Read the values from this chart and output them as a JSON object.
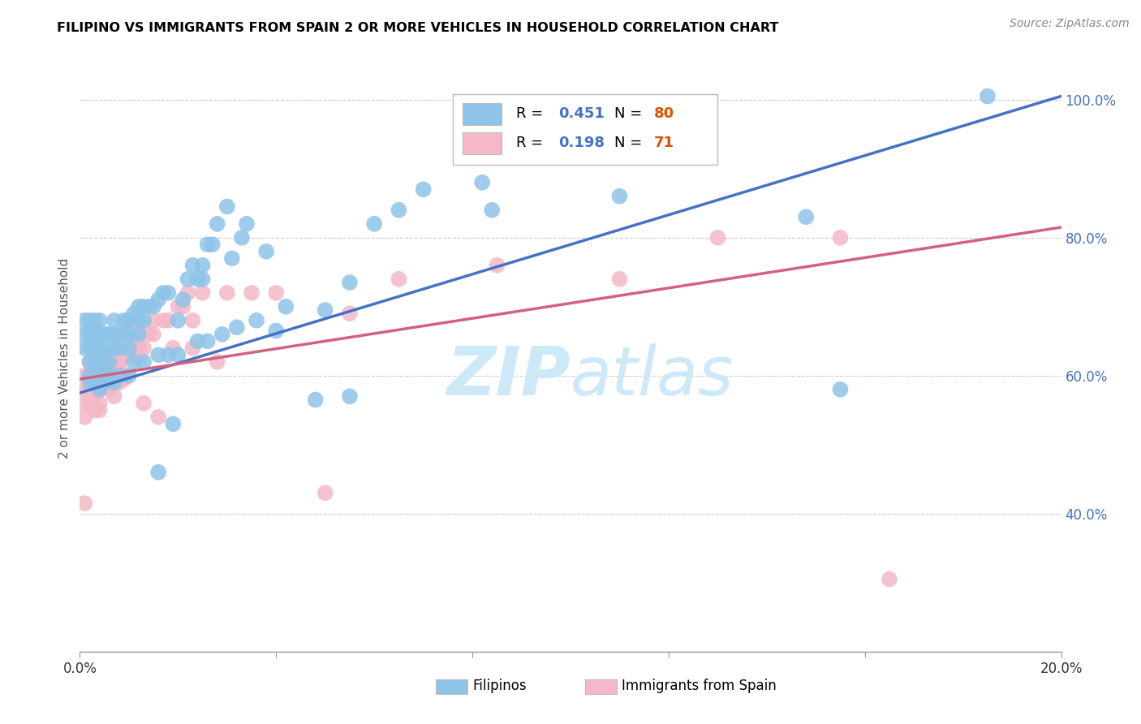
{
  "title": "FILIPINO VS IMMIGRANTS FROM SPAIN 2 OR MORE VEHICLES IN HOUSEHOLD CORRELATION CHART",
  "source": "Source: ZipAtlas.com",
  "ylabel": "2 or more Vehicles in Household",
  "xlim": [
    0.0,
    0.2
  ],
  "ylim": [
    0.2,
    1.05
  ],
  "x_ticks": [
    0.0,
    0.04,
    0.08,
    0.12,
    0.16,
    0.2
  ],
  "x_tick_labels": [
    "0.0%",
    "",
    "",
    "",
    "",
    "20.0%"
  ],
  "y_ticks_right": [
    0.4,
    0.6,
    0.8,
    1.0
  ],
  "y_tick_labels_right": [
    "40.0%",
    "60.0%",
    "80.0%",
    "100.0%"
  ],
  "legend_label1": "Filipinos",
  "legend_label2": "Immigrants from Spain",
  "blue_color": "#8ec4e8",
  "blue_line_color": "#4472c4",
  "pink_color": "#f4b8c8",
  "pink_line_color": "#d46080",
  "watermark_color": "#cde8f7",
  "blue_scatter_x": [
    0.001,
    0.001,
    0.001,
    0.002,
    0.002,
    0.002,
    0.002,
    0.002,
    0.003,
    0.003,
    0.003,
    0.003,
    0.003,
    0.003,
    0.004,
    0.004,
    0.004,
    0.004,
    0.004,
    0.004,
    0.005,
    0.005,
    0.005,
    0.005,
    0.006,
    0.006,
    0.006,
    0.007,
    0.007,
    0.007,
    0.008,
    0.008,
    0.009,
    0.009,
    0.01,
    0.01,
    0.01,
    0.011,
    0.012,
    0.012,
    0.012,
    0.013,
    0.013,
    0.014,
    0.015,
    0.016,
    0.016,
    0.017,
    0.018,
    0.019,
    0.02,
    0.021,
    0.022,
    0.023,
    0.024,
    0.025,
    0.025,
    0.026,
    0.027,
    0.028,
    0.03,
    0.031,
    0.033,
    0.034,
    0.038,
    0.04,
    0.048,
    0.05,
    0.055,
    0.06,
    0.065,
    0.07,
    0.082,
    0.084,
    0.11,
    0.148,
    0.155,
    0.185,
    0.002,
    0.003,
    0.004,
    0.005,
    0.006,
    0.007,
    0.008,
    0.01,
    0.011,
    0.013,
    0.016,
    0.018,
    0.02,
    0.024,
    0.026,
    0.029,
    0.032,
    0.036,
    0.042,
    0.055
  ],
  "blue_scatter_y": [
    0.64,
    0.66,
    0.68,
    0.6,
    0.62,
    0.64,
    0.66,
    0.68,
    0.6,
    0.62,
    0.64,
    0.65,
    0.66,
    0.68,
    0.6,
    0.61,
    0.62,
    0.64,
    0.66,
    0.68,
    0.6,
    0.62,
    0.64,
    0.66,
    0.6,
    0.62,
    0.66,
    0.64,
    0.66,
    0.68,
    0.64,
    0.66,
    0.66,
    0.68,
    0.64,
    0.66,
    0.68,
    0.69,
    0.66,
    0.68,
    0.7,
    0.68,
    0.7,
    0.7,
    0.7,
    0.46,
    0.71,
    0.72,
    0.72,
    0.53,
    0.68,
    0.71,
    0.74,
    0.76,
    0.74,
    0.74,
    0.76,
    0.79,
    0.79,
    0.82,
    0.845,
    0.77,
    0.8,
    0.82,
    0.78,
    0.665,
    0.565,
    0.695,
    0.735,
    0.82,
    0.84,
    0.87,
    0.88,
    0.84,
    0.86,
    0.83,
    0.58,
    1.005,
    0.59,
    0.59,
    0.58,
    0.59,
    0.6,
    0.59,
    0.6,
    0.6,
    0.62,
    0.62,
    0.63,
    0.63,
    0.63,
    0.65,
    0.65,
    0.66,
    0.67,
    0.68,
    0.7,
    0.57
  ],
  "pink_scatter_x": [
    0.001,
    0.001,
    0.001,
    0.001,
    0.001,
    0.002,
    0.002,
    0.002,
    0.002,
    0.002,
    0.003,
    0.003,
    0.003,
    0.003,
    0.003,
    0.003,
    0.004,
    0.004,
    0.004,
    0.004,
    0.005,
    0.005,
    0.006,
    0.006,
    0.006,
    0.007,
    0.007,
    0.008,
    0.008,
    0.009,
    0.009,
    0.01,
    0.011,
    0.012,
    0.012,
    0.013,
    0.013,
    0.014,
    0.015,
    0.016,
    0.017,
    0.019,
    0.02,
    0.021,
    0.022,
    0.023,
    0.025,
    0.028,
    0.03,
    0.035,
    0.04,
    0.05,
    0.055,
    0.065,
    0.085,
    0.11,
    0.13,
    0.155,
    0.165,
    0.002,
    0.003,
    0.004,
    0.005,
    0.006,
    0.007,
    0.008,
    0.01,
    0.012,
    0.015,
    0.018,
    0.023
  ],
  "pink_scatter_y": [
    0.6,
    0.58,
    0.56,
    0.54,
    0.415,
    0.58,
    0.56,
    0.6,
    0.62,
    0.58,
    0.57,
    0.59,
    0.55,
    0.57,
    0.59,
    0.61,
    0.56,
    0.58,
    0.55,
    0.6,
    0.59,
    0.61,
    0.58,
    0.605,
    0.625,
    0.61,
    0.57,
    0.62,
    0.59,
    0.63,
    0.595,
    0.67,
    0.645,
    0.66,
    0.625,
    0.64,
    0.56,
    0.66,
    0.68,
    0.54,
    0.68,
    0.64,
    0.7,
    0.7,
    0.72,
    0.68,
    0.72,
    0.62,
    0.72,
    0.72,
    0.72,
    0.43,
    0.69,
    0.74,
    0.76,
    0.74,
    0.8,
    0.8,
    0.305,
    0.58,
    0.58,
    0.59,
    0.59,
    0.6,
    0.61,
    0.61,
    0.63,
    0.64,
    0.66,
    0.68,
    0.64
  ],
  "blue_line_x": [
    0.0,
    0.2
  ],
  "blue_line_y": [
    0.575,
    1.005
  ],
  "pink_line_x": [
    0.0,
    0.2
  ],
  "pink_line_y": [
    0.595,
    0.815
  ]
}
